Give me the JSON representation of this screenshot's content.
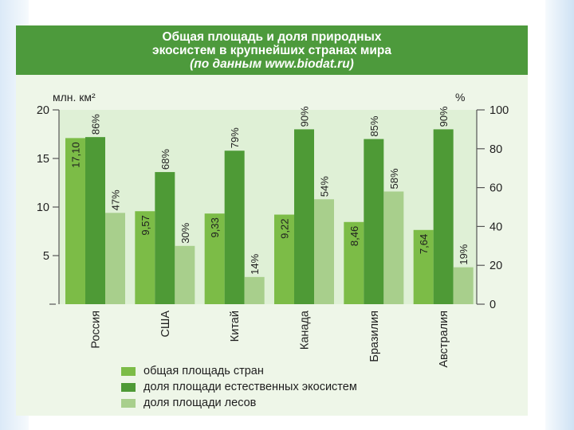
{
  "header": {
    "title_line1": "Общая площадь и доля природных",
    "title_line2": "экосистем в крупнейших странах мира",
    "source_line": "(по данным www.biodat.ru)"
  },
  "colors": {
    "area": "#7cbc47",
    "ecosystems": "#4e9a36",
    "forests": "#a8cf8c",
    "header_bg": "#4d9a3c",
    "card_bg": "#eef6e8"
  },
  "chart_data": {
    "type": "bar",
    "categories": [
      "Россия",
      "США",
      "Китай",
      "Канада",
      "Бразилия",
      "Австралия"
    ],
    "ylabel_left": "млн. км²",
    "ylabel_right": "%",
    "ylim_left": [
      0,
      20
    ],
    "ylim_right": [
      0,
      100
    ],
    "yticks_left": [
      "5",
      "10",
      "15",
      "20"
    ],
    "yticks_right": [
      "0",
      "20",
      "40",
      "60",
      "80",
      "100"
    ],
    "series": [
      {
        "name": "общая площадь стран",
        "axis": "left",
        "values": [
          17.1,
          9.57,
          9.33,
          9.22,
          8.46,
          7.64
        ],
        "labels": [
          "17,10",
          "9,57",
          "9,33",
          "9,22",
          "8,46",
          "7,64"
        ]
      },
      {
        "name": "доля площади естественных экосистем",
        "axis": "right",
        "values": [
          86,
          68,
          79,
          90,
          85,
          90
        ],
        "labels": [
          "86%",
          "68%",
          "79%",
          "90%",
          "85%",
          "90%"
        ]
      },
      {
        "name": "доля площади лесов",
        "axis": "right",
        "values": [
          47,
          30,
          14,
          54,
          58,
          19
        ],
        "labels": [
          "47%",
          "30%",
          "14%",
          "54%",
          "58%",
          "19%"
        ]
      }
    ],
    "legend_position": "bottom"
  }
}
